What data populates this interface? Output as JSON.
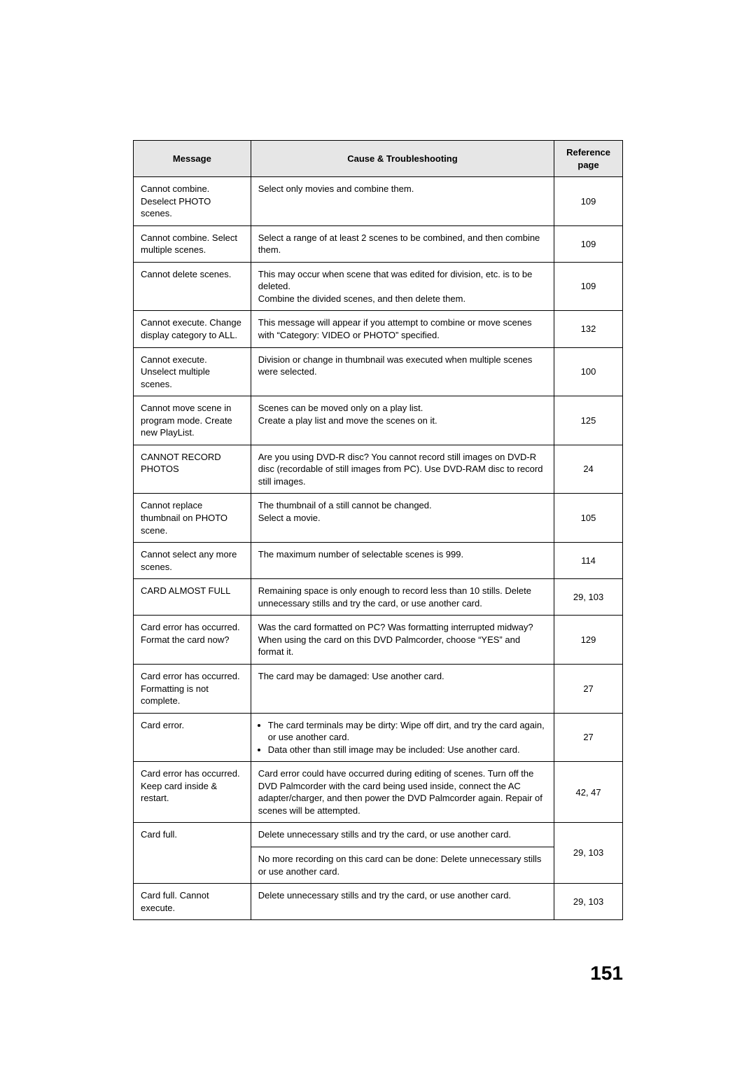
{
  "headers": {
    "message": "Message",
    "cause": "Cause & Troubleshooting",
    "reference": "Reference page"
  },
  "page_number": "151",
  "table_style": {
    "header_bg": "#e6e6e6",
    "border_color": "#000000",
    "font_size_pt": 13,
    "header_font_weight": "bold"
  },
  "rows": [
    {
      "message": "Cannot combine. Deselect PHOTO scenes.",
      "cause": "Select only movies and combine them.",
      "ref": "109"
    },
    {
      "message": "Cannot combine. Select multiple scenes.",
      "cause": "Select a range of at least 2 scenes to be combined, and then combine them.",
      "ref": "109"
    },
    {
      "message": "Cannot delete scenes.",
      "cause": "This may occur when scene that was edited for division, etc. is to be deleted.\nCombine the divided scenes, and then delete them.",
      "ref": "109"
    },
    {
      "message": "Cannot execute. Change display category to ALL.",
      "cause": "This message will appear if you attempt to combine or move scenes with “Category: VIDEO or PHOTO” specified.",
      "ref": "132"
    },
    {
      "message": "Cannot execute. Unselect multiple scenes.",
      "cause": "Division or change in thumbnail was executed when multiple scenes were selected.",
      "ref": "100"
    },
    {
      "message": "Cannot move scene in program mode. Create new PlayList.",
      "cause": "Scenes can be moved only on a play list.\nCreate a play list and move the scenes on it.",
      "ref": "125"
    },
    {
      "message": "CANNOT RECORD PHOTOS",
      "cause": "Are you using DVD-R disc? You cannot record still images on DVD-R disc (recordable of still images from PC). Use DVD-RAM disc to record still images.",
      "ref": "24"
    },
    {
      "message": "Cannot replace thumbnail on PHOTO scene.",
      "cause": "The thumbnail of a still cannot be changed.\nSelect a movie.",
      "ref": "105"
    },
    {
      "message": "Cannot select any more scenes.",
      "cause": "The maximum number of selectable scenes is 999.",
      "ref": "114"
    },
    {
      "message": "CARD ALMOST FULL",
      "cause": "Remaining space is only enough to record less than 10 stills. Delete unnecessary stills and try the card, or use another card.",
      "ref": "29, 103"
    },
    {
      "message": "Card error has occurred. Format the card now?",
      "cause": "Was the card formatted on PC? Was formatting interrupted midway? When using the card on this DVD Palmcorder, choose “YES” and format it.",
      "ref": "129"
    },
    {
      "message": "Card error has occurred. Formatting is not complete.",
      "cause": "The card may be damaged: Use another card.",
      "ref": "27"
    },
    {
      "message": "Card error.",
      "cause_bullets": [
        "The card terminals may be dirty: Wipe off dirt, and try the card again, or use another card.",
        "Data other than still image may be included: Use another card."
      ],
      "ref": "27"
    },
    {
      "message": "Card error has occurred. Keep card inside & restart.",
      "cause": "Card error could have occurred during editing of scenes. Turn off the DVD Palmcorder with the card being used inside, connect the AC adapter/charger, and then power the DVD Palmcorder again. Repair of scenes will be attempted.",
      "ref": "42, 47"
    },
    {
      "message": "Card full.",
      "cause_multi": [
        "Delete unnecessary stills and try the card, or use another card.",
        "No more recording on this card can be done: Delete unnecessary stills or use another card."
      ],
      "ref": "29, 103"
    },
    {
      "message": "Card full. Cannot execute.",
      "cause": "Delete unnecessary stills and try the card, or use another card.",
      "ref": "29, 103"
    }
  ]
}
